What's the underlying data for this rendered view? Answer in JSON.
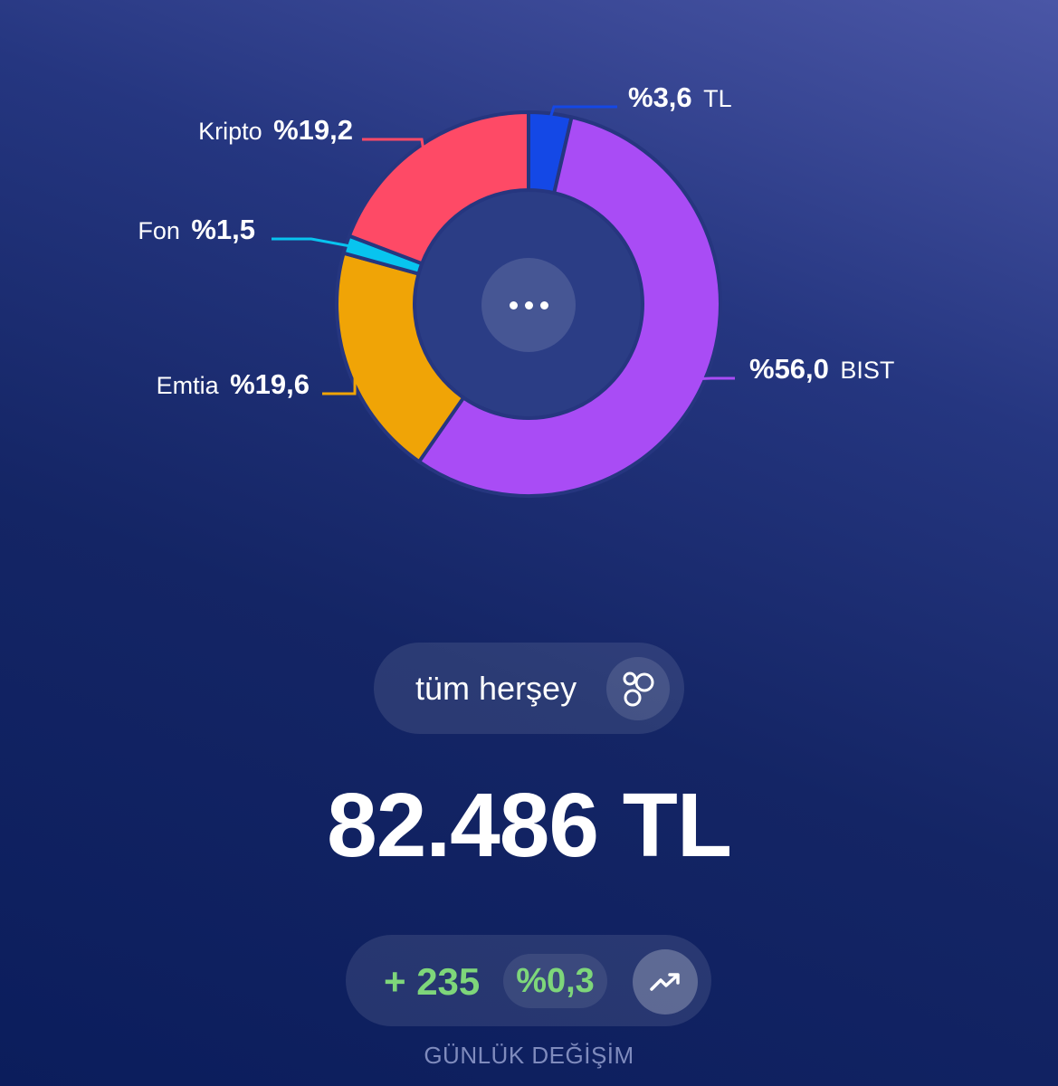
{
  "chart_data": {
    "type": "pie",
    "variant": "donut",
    "slices": [
      {
        "name": "TL",
        "label": "%3,6",
        "value": 3.6,
        "color": "#1448e6"
      },
      {
        "name": "BIST",
        "label": "%56,0",
        "value": 56.0,
        "color": "#a94cf5"
      },
      {
        "name": "Emtia",
        "label": "%19,6",
        "value": 19.6,
        "color": "#f0a406"
      },
      {
        "name": "Fon",
        "label": "%1,5",
        "value": 1.5,
        "color": "#08c4ef"
      },
      {
        "name": "Kripto",
        "label": "%19,2",
        "value": 19.2,
        "color": "#fe4a66"
      }
    ]
  },
  "center_button": {
    "icon": "more-dots-icon"
  },
  "scope": {
    "label": "tüm herşey",
    "icon": "circles-icon"
  },
  "total": {
    "value": "82.486 TL"
  },
  "daily_change": {
    "amount": "+ 235",
    "percent": "%0,3",
    "icon": "trending-up-icon",
    "caption": "GÜNLÜK DEĞİŞİM"
  },
  "colors": {
    "positive": "#7ed67a",
    "caption": "#7f8bbd"
  }
}
